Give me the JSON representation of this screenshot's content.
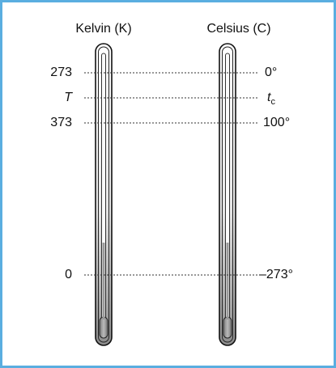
{
  "thermometers": [
    {
      "title": "Kelvin (K)",
      "marks": [
        {
          "text": "273"
        },
        {
          "text": "T"
        },
        {
          "text": "373"
        },
        {
          "text": "0"
        }
      ]
    },
    {
      "title": "Celsius (C)",
      "marks": [
        {
          "text": "0°"
        },
        {
          "text": "t",
          "sub": "c"
        },
        {
          "text": "100°"
        },
        {
          "text": "–273°"
        }
      ]
    }
  ]
}
